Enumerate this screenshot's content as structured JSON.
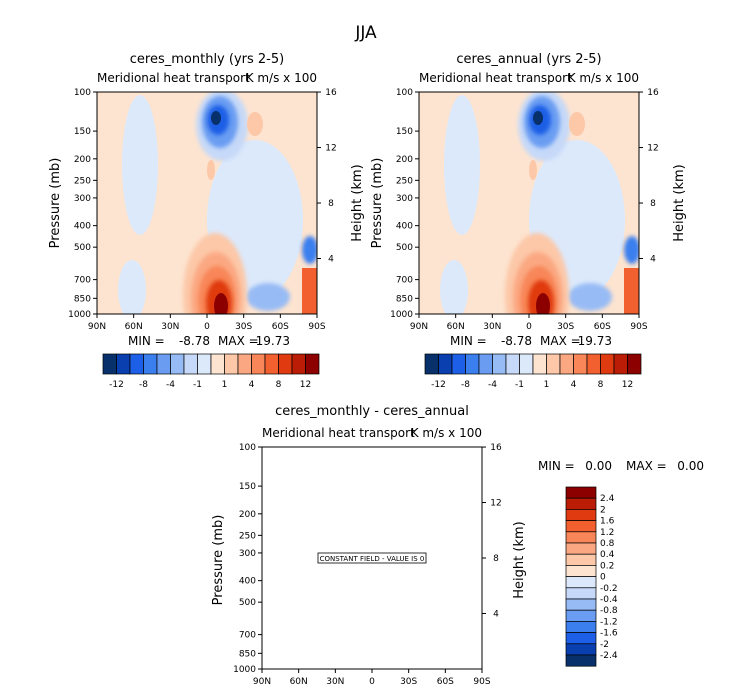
{
  "figure_title": "JJA",
  "colors": {
    "scale": [
      "#08306b",
      "#0a3fb0",
      "#1d5fe6",
      "#3b7fef",
      "#6a9df2",
      "#97bbf5",
      "#c6d9f8",
      "#dce9fb",
      "#fde4d0",
      "#fcc8a8",
      "#fba882",
      "#f88658",
      "#f1602e",
      "#df3a10",
      "#bb1c06",
      "#8c0000"
    ]
  },
  "chart_data": [
    {
      "id": "p1",
      "type": "heatmap",
      "title": "ceres_monthly (yrs 2-5)",
      "subtitle": "Meridional heat transport",
      "units": "K m/s x 100",
      "ylabel": "Pressure (mb)",
      "y2label": "Height (km)",
      "x_ticks": [
        "90N",
        "60N",
        "30N",
        "0",
        "30S",
        "60S",
        "90S"
      ],
      "y_ticks": [
        1000,
        850,
        700,
        500,
        400,
        300,
        250,
        200,
        150,
        100
      ],
      "y2_ticks": [
        4,
        8,
        12,
        16
      ],
      "ylim": [
        1000,
        100
      ],
      "min_label": "MIN =",
      "min_value": "-8.78",
      "max_label": "MAX =",
      "max_value": "19.73",
      "colorbar": {
        "orientation": "horizontal",
        "labels": [
          "-12",
          "-8",
          "-4",
          "-1",
          "1",
          "4",
          "8",
          "12"
        ]
      }
    },
    {
      "id": "p2",
      "type": "heatmap",
      "title": "ceres_annual (yrs 2-5)",
      "subtitle": "Meridional heat transport",
      "units": "K m/s x 100",
      "ylabel": "Pressure (mb)",
      "y2label": "Height (km)",
      "x_ticks": [
        "90N",
        "60N",
        "30N",
        "0",
        "30S",
        "60S",
        "90S"
      ],
      "y_ticks": [
        1000,
        850,
        700,
        500,
        400,
        300,
        250,
        200,
        150,
        100
      ],
      "y2_ticks": [
        4,
        8,
        12,
        16
      ],
      "ylim": [
        1000,
        100
      ],
      "min_label": "MIN =",
      "min_value": "-8.78",
      "max_label": "MAX =",
      "max_value": "19.73",
      "colorbar": {
        "orientation": "horizontal",
        "labels": [
          "-12",
          "-8",
          "-4",
          "-1",
          "1",
          "4",
          "8",
          "12"
        ]
      }
    },
    {
      "id": "p3",
      "type": "heatmap",
      "title": "ceres_monthly - ceres_annual",
      "subtitle": "Meridional heat transport",
      "units": "K m/s x 100",
      "ylabel": "Pressure (mb)",
      "y2label": "Height (km)",
      "x_ticks": [
        "90N",
        "60N",
        "30N",
        "0",
        "30S",
        "60S",
        "90S"
      ],
      "y_ticks": [
        1000,
        850,
        700,
        500,
        400,
        300,
        250,
        200,
        150,
        100
      ],
      "y2_ticks": [
        4,
        8,
        12,
        16
      ],
      "ylim": [
        1000,
        100
      ],
      "min_label": "MIN =",
      "min_value": "0.00",
      "max_label": "MAX =",
      "max_value": "0.00",
      "constant_field_text": "CONSTANT FIELD - VALUE IS 0",
      "colorbar": {
        "orientation": "vertical",
        "labels": [
          "2.4",
          "2",
          "1.6",
          "1.2",
          "0.8",
          "0.4",
          "0.2",
          "0",
          "-0.2",
          "-0.4",
          "-0.8",
          "-1.2",
          "-1.6",
          "-2",
          "-2.4"
        ]
      }
    }
  ]
}
